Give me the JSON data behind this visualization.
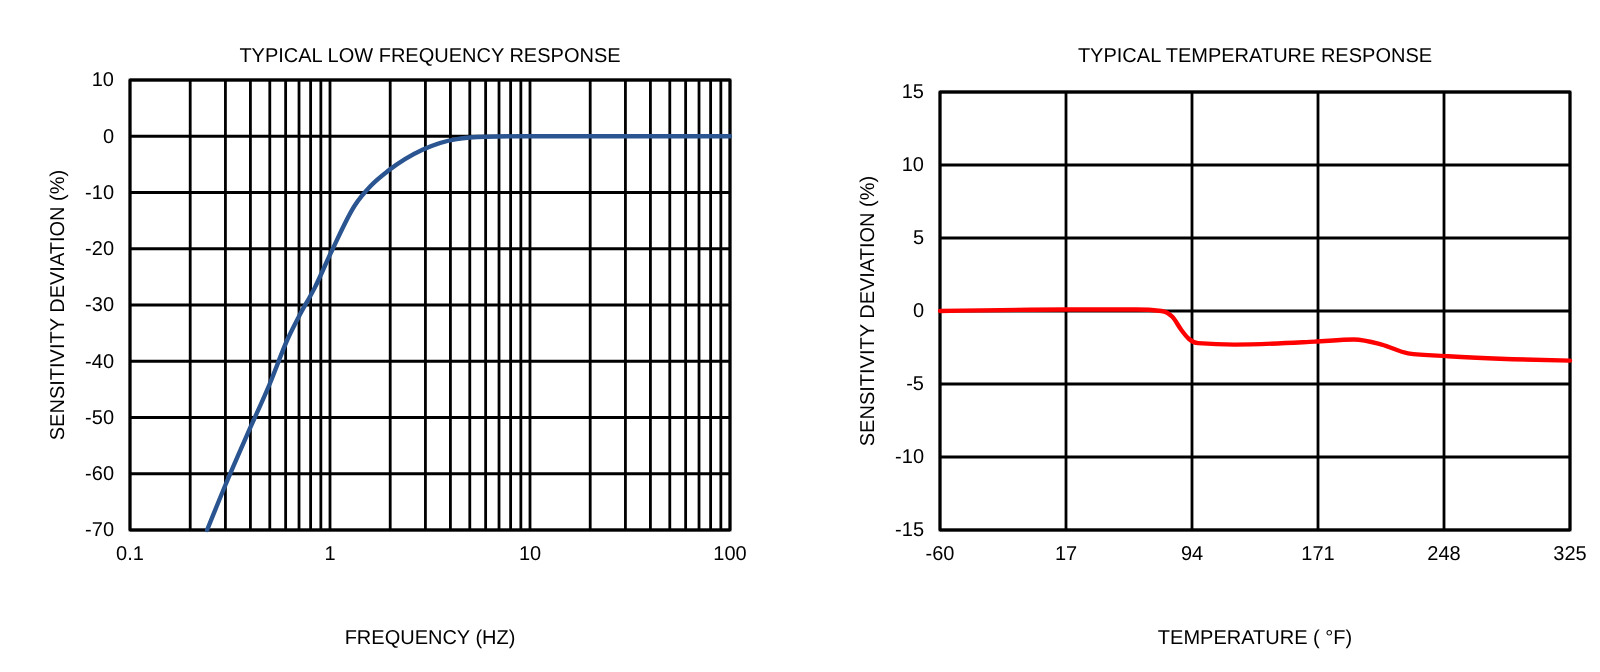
{
  "chart_data": [
    {
      "type": "line",
      "title": "TYPICAL LOW FREQUENCY RESPONSE",
      "xlabel": "FREQUENCY (HZ)",
      "ylabel": "SENSITIVITY DEVIATION (%)",
      "log": "x",
      "grid": true,
      "xlim": [
        0.1,
        100
      ],
      "xticks": [
        0.1,
        1,
        10,
        100
      ],
      "ylim": [
        -70,
        10
      ],
      "yticks": [
        -70,
        -60,
        -50,
        -40,
        -30,
        -20,
        -10,
        0,
        10
      ],
      "series": [
        {
          "color": "#2a5590",
          "x": [
            0.243,
            0.3,
            0.386,
            0.5,
            0.615,
            0.7,
            0.837,
            1.02,
            1.33,
            1.6,
            1.96,
            2.9,
            4.3,
            6,
            9.2,
            20,
            50,
            100
          ],
          "values": [
            -70,
            -62,
            -53,
            -44,
            -36,
            -32,
            -27,
            -20.4,
            -12.3,
            -8.8,
            -6.1,
            -2.4,
            -0.5,
            -0.1,
            0,
            0,
            0,
            0
          ]
        }
      ]
    },
    {
      "type": "line",
      "title": "TYPICAL TEMPERATURE RESPONSE",
      "xlabel": "TEMPERATURE ( °F)",
      "ylabel": "SENSITIVITY DEVIATION (%)",
      "grid": true,
      "xlim": [
        -60,
        325
      ],
      "xticks": [
        -60,
        17,
        94,
        171,
        248,
        325
      ],
      "ylim": [
        -15,
        15
      ],
      "yticks": [
        -15,
        -10,
        -5,
        0,
        5,
        10,
        15
      ],
      "series": [
        {
          "color": "#ff0000",
          "x": [
            -60,
            17,
            60,
            75.3,
            82,
            87.5,
            92,
            97.7,
            120,
            169,
            193,
            210,
            226,
            250.5,
            290,
            325
          ],
          "values": [
            0,
            0.1,
            0.1,
            0,
            -0.4,
            -1.3,
            -1.9,
            -2.2,
            -2.3,
            -2.1,
            -1.95,
            -2.3,
            -2.9,
            -3.1,
            -3.3,
            -3.4
          ]
        }
      ]
    }
  ]
}
